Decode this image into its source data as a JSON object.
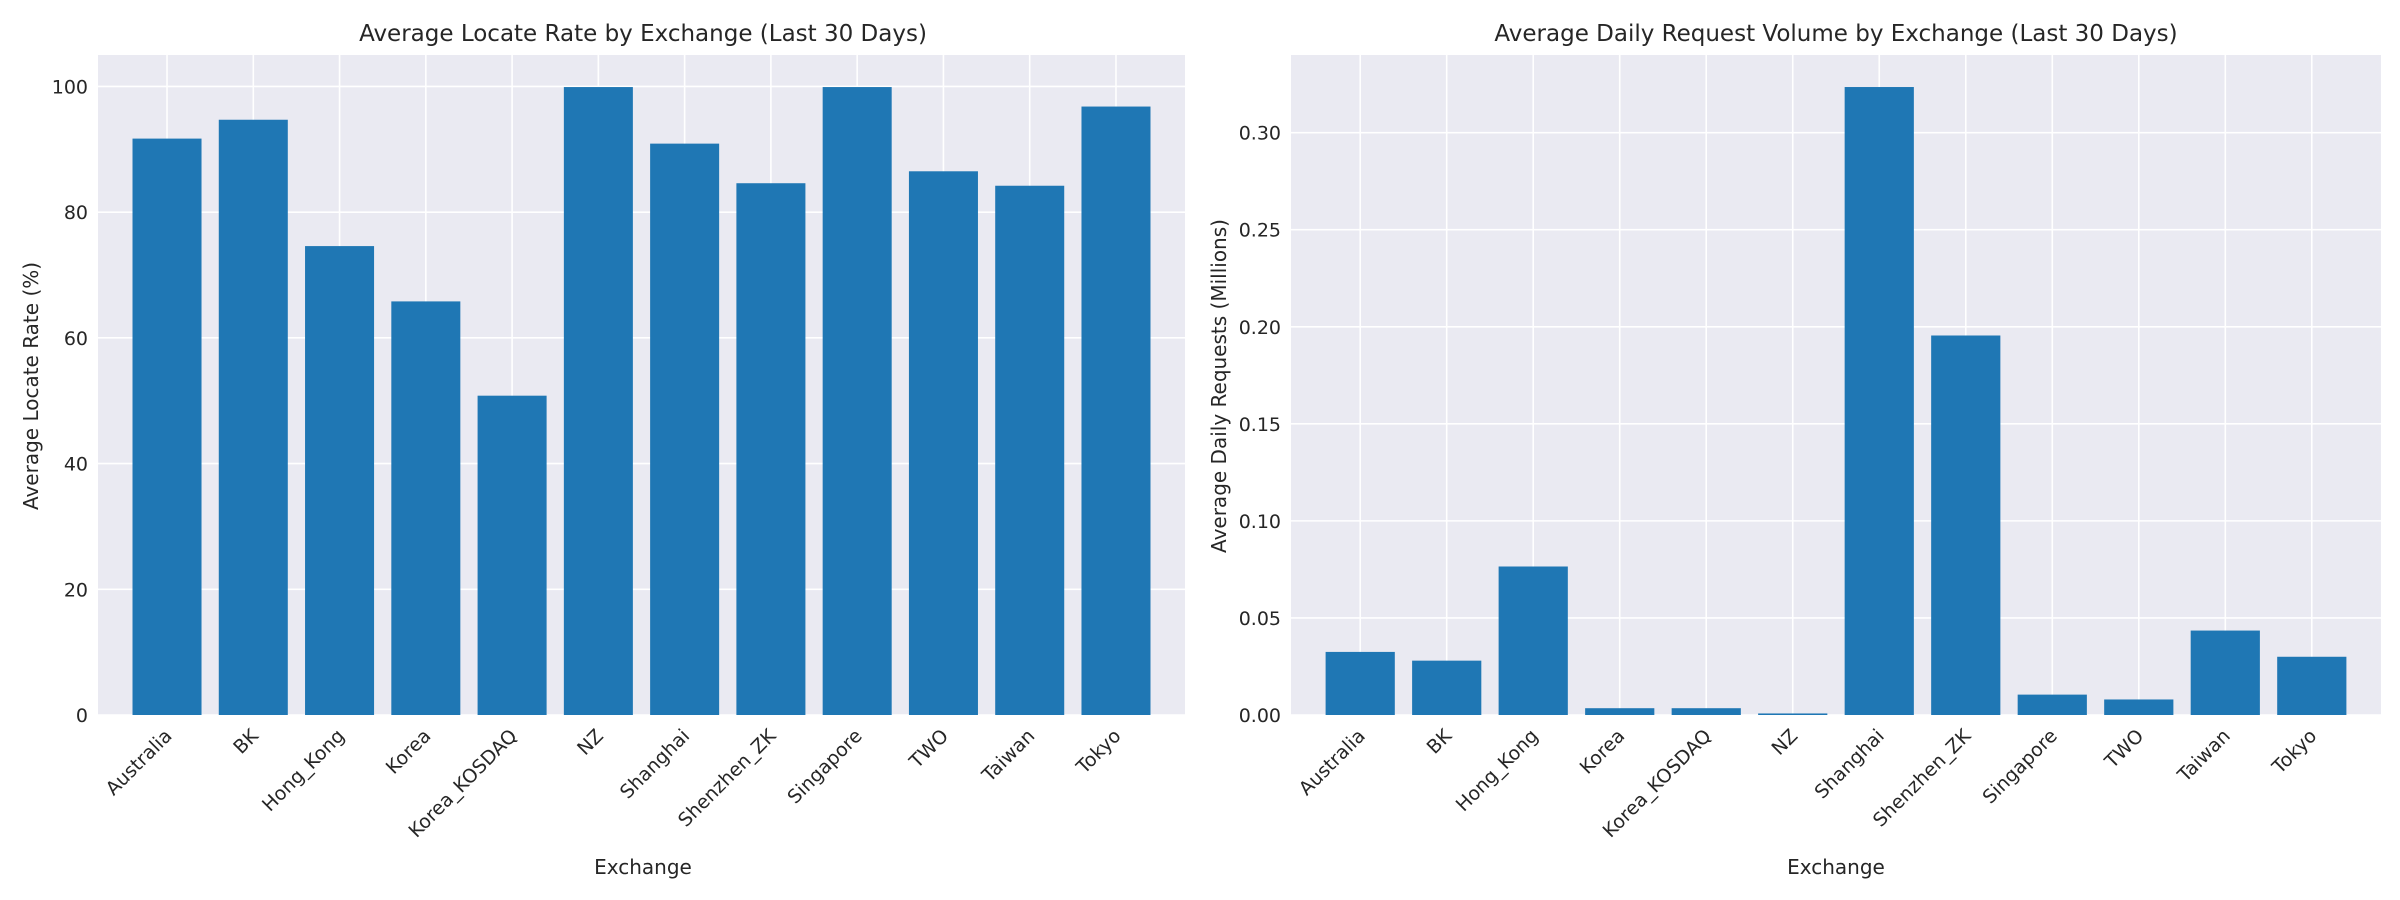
{
  "colors": {
    "bar": "#1f77b4",
    "axes_bg": "#eaeaf2",
    "grid": "#ffffff",
    "text": "#262626"
  },
  "chart_data": [
    {
      "type": "bar",
      "title": "Average Locate Rate by Exchange (Last 30 Days)",
      "xlabel": "Exchange",
      "ylabel": "Average Locate Rate (%)",
      "categories": [
        "Australia",
        "BK",
        "Hong_Kong",
        "Korea",
        "Korea_KOSDAQ",
        "NZ",
        "Shanghai",
        "Shenzhen_ZK",
        "Singapore",
        "TWO",
        "Taiwan",
        "Tokyo"
      ],
      "values": [
        91.7,
        94.7,
        74.6,
        65.8,
        50.8,
        99.9,
        90.9,
        84.6,
        99.9,
        86.5,
        84.2,
        96.8
      ],
      "ylim": [
        0,
        105
      ],
      "yticks": [
        "0",
        "20",
        "40",
        "60",
        "80",
        "100"
      ],
      "grid": true
    },
    {
      "type": "bar",
      "title": "Average Daily Request Volume by Exchange (Last 30 Days)",
      "xlabel": "Exchange",
      "ylabel": "Average Daily Requests (Millions)",
      "categories": [
        "Australia",
        "BK",
        "Hong_Kong",
        "Korea",
        "Korea_KOSDAQ",
        "NZ",
        "Shanghai",
        "Shenzhen_ZK",
        "Singapore",
        "TWO",
        "Taiwan",
        "Tokyo"
      ],
      "values": [
        0.0325,
        0.028,
        0.0765,
        0.0035,
        0.0035,
        0.0008,
        0.3235,
        0.1955,
        0.0105,
        0.008,
        0.0435,
        0.03
      ],
      "ylim": [
        0,
        0.34
      ],
      "yticks": [
        "0.00",
        "0.05",
        "0.10",
        "0.15",
        "0.20",
        "0.25",
        "0.30"
      ],
      "grid": true
    }
  ]
}
